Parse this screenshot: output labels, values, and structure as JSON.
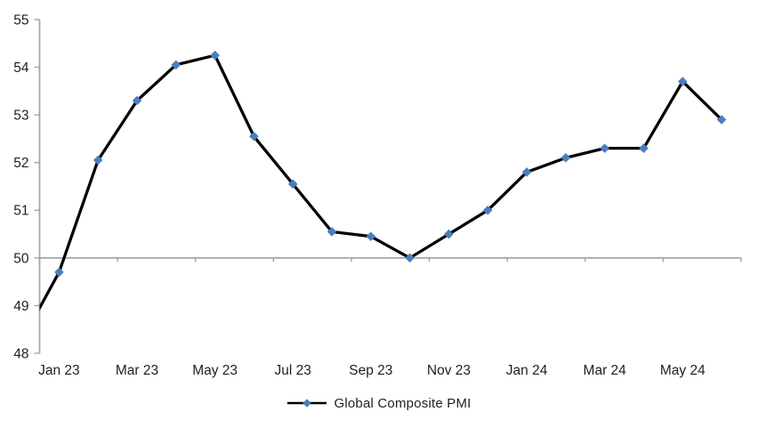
{
  "figure": {
    "background": "#ffffff",
    "axis_color": "#a6a6a6",
    "text_color": "#1f1f1f"
  },
  "chart_data": {
    "type": "line",
    "title": "",
    "xlabel": "",
    "ylabel": "",
    "ylim": [
      48,
      55
    ],
    "y_ticks": [
      55,
      54,
      53,
      52,
      51,
      50,
      49,
      48
    ],
    "x_tick_labels": [
      "Jan 23",
      "Mar 23",
      "May 23",
      "Jul 23",
      "Sep 23",
      "Nov 23",
      "Jan 24",
      "Mar 24",
      "May 24"
    ],
    "x_axis_crosses_at": 50,
    "x_boundary_tick_every_n_categories": 2,
    "grid": false,
    "clipped_points_left": 1,
    "note": "First point (Dec 22) lies left of the plot area; its connecting line is clipped at the y-axis so the series visually enters the plot at about 48.9.",
    "legend": {
      "position": "bottom-center"
    },
    "series": [
      {
        "name": "Global Composite PMI",
        "line_color": "#000000",
        "marker": "diamond",
        "marker_color": "#4a7ebc",
        "categories": [
          "Dec 22",
          "Jan 23",
          "Feb 23",
          "Mar 23",
          "Apr 23",
          "May 23",
          "Jun 23",
          "Jul 23",
          "Aug 23",
          "Sep 23",
          "Oct 23",
          "Nov 23",
          "Dec 23",
          "Jan 24",
          "Feb 24",
          "Mar 24",
          "Apr 24",
          "May 24",
          "Jun 24"
        ],
        "values": [
          48.2,
          49.7,
          52.05,
          53.3,
          54.05,
          54.25,
          52.55,
          51.55,
          50.55,
          50.45,
          50.0,
          50.5,
          51.0,
          51.8,
          52.1,
          52.3,
          52.3,
          53.7,
          52.9
        ]
      }
    ]
  }
}
